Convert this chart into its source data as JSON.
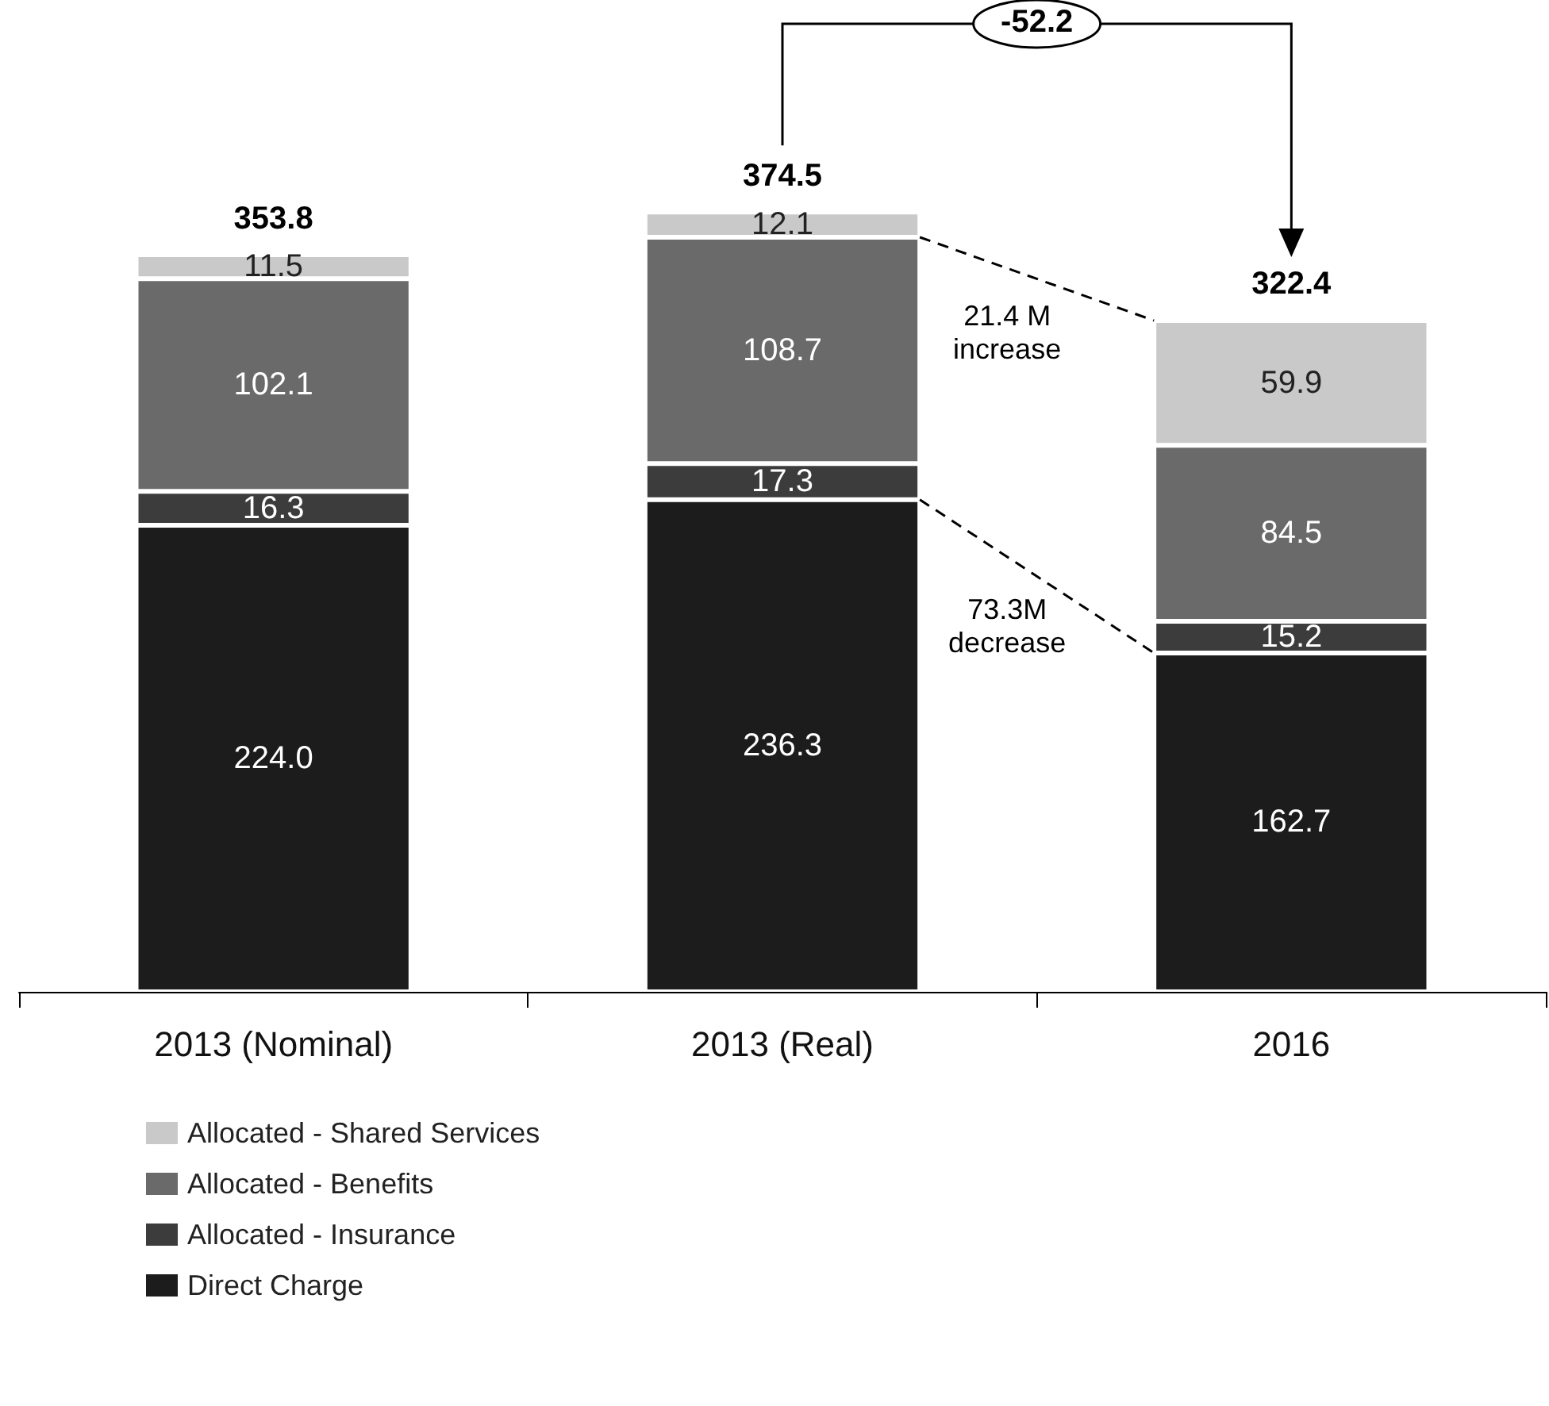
{
  "chart_data": {
    "type": "bar",
    "stacked": true,
    "categories": [
      "2013 (Nominal)",
      "2013 (Real)",
      "2016"
    ],
    "series": [
      {
        "name": "Direct Charge",
        "color": "#1c1c1c",
        "values": [
          224.0,
          236.3,
          162.7
        ],
        "value_labels": [
          "224.0",
          "236.3",
          "162.7"
        ]
      },
      {
        "name": "Allocated - Insurance",
        "color": "#3c3c3c",
        "values": [
          16.3,
          17.3,
          15.2
        ],
        "value_labels": [
          "16.3",
          "17.3",
          "15.2"
        ]
      },
      {
        "name": "Allocated - Benefits",
        "color": "#6a6a6a",
        "values": [
          102.1,
          108.7,
          84.5
        ],
        "value_labels": [
          "102.1",
          "108.7",
          "84.5"
        ]
      },
      {
        "name": "Allocated - Shared Services",
        "color": "#c9c9c9",
        "values": [
          11.5,
          12.1,
          59.9
        ],
        "value_labels": [
          "11.5",
          "12.1",
          "59.9"
        ]
      }
    ],
    "totals": [
      "353.8",
      "374.5",
      "322.4"
    ],
    "annotations": [
      "-52.2",
      "21.4 M increase",
      "73.3M decrease"
    ],
    "legend": "bottom left"
  }
}
